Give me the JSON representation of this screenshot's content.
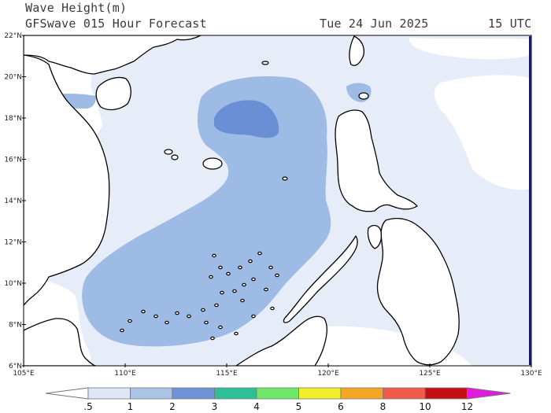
{
  "header": {
    "line1": "Wave Height(m)",
    "model_line": "GFSwave 015 Hour Forecast",
    "date": "Tue 24 Jun 2025",
    "time": "15 UTC"
  },
  "axes": {
    "lat_labels": [
      "22°N",
      "20°N",
      "18°N",
      "16°N",
      "14°N",
      "12°N",
      "10°N",
      "8°N",
      "6°N"
    ],
    "lon_labels": [
      "105°E",
      "110°E",
      "115°E",
      "120°E",
      "125°E",
      "130°E"
    ]
  },
  "colorbar": {
    "labels": [
      ".5",
      "1",
      "2",
      "3",
      "4",
      "5",
      "6",
      "8",
      "10",
      "12"
    ],
    "colors": [
      "#ffffff",
      "#dde7f5",
      "#aac4e6",
      "#6f93d6",
      "#2fbf98",
      "#6fe86a",
      "#f3ee2a",
      "#f5a623",
      "#f25a4a",
      "#c70d14",
      "#e21ae0"
    ]
  },
  "map_colors": {
    "light_sea": "#e6edf8",
    "medium_sea": "#9dbbe5",
    "dark_sea": "#6b8fd4",
    "land": "#ffffff",
    "coast": "#000000"
  }
}
